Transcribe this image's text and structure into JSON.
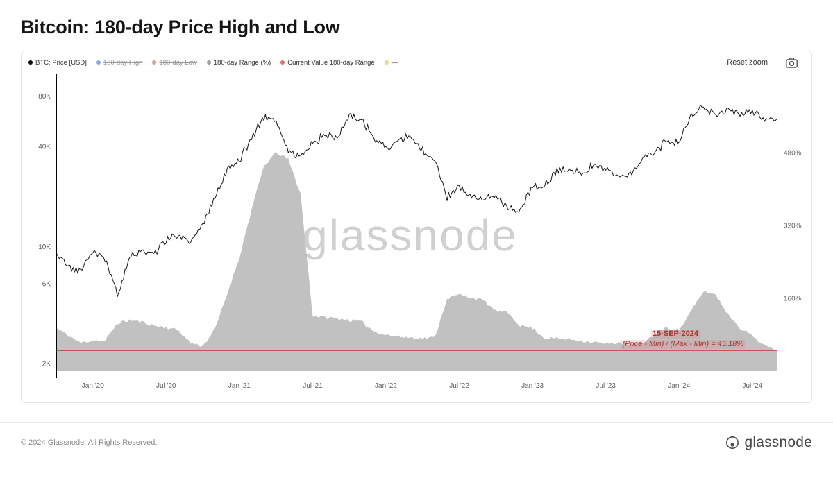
{
  "page": {
    "title": "Bitcoin: 180-day Price High and Low",
    "watermark": "glassnode",
    "footer_copyright": "© 2024 Glassnode. All Rights Reserved.",
    "brand": "glassnode"
  },
  "toolbar": {
    "reset_zoom_label": "Reset zoom"
  },
  "legend": [
    {
      "label": "BTC: Price [USD]",
      "color": "#000000",
      "disabled": false
    },
    {
      "label": "180-day High",
      "color": "#4a7bd4",
      "disabled": true
    },
    {
      "label": "180-day Low",
      "color": "#d45a5a",
      "disabled": true
    },
    {
      "label": "180-day Range (%)",
      "color": "#9e9e9e",
      "disabled": false
    },
    {
      "label": "Current Value 180-day Range",
      "color": "#e07070",
      "disabled": false
    },
    {
      "label": "—",
      "color": "#e0c040",
      "disabled": true
    }
  ],
  "annotation": {
    "date": "15-SEP-2024",
    "formula": "(Price - Min) / (Max - Min) = 45.18%",
    "value_pct": 45.18
  },
  "chart_data": {
    "type": "line",
    "title": "Bitcoin: 180-day Price High and Low",
    "x_start": "2019-10",
    "x_end": "2024-09",
    "x_tick_labels": [
      "Jan '20",
      "Jul '20",
      "Jan '21",
      "Jul '21",
      "Jan '22",
      "Jul '22",
      "Jan '23",
      "Jul '23",
      "Jan '24",
      "Jul '24"
    ],
    "x_tick_month_index": [
      3,
      9,
      15,
      21,
      27,
      33,
      39,
      45,
      51,
      57
    ],
    "price_axis": {
      "scale": "log",
      "side": "left",
      "min": 1800,
      "max": 100000,
      "ticks": [
        2000,
        6000,
        10000,
        40000,
        80000
      ],
      "tick_labels": [
        "2K",
        "6K",
        "10K",
        "40K",
        "80K"
      ]
    },
    "range_axis": {
      "scale": "linear",
      "side": "right",
      "min": 0,
      "max": 640,
      "ticks": [
        160,
        320,
        480
      ],
      "tick_labels": [
        "160%",
        "320%",
        "480%"
      ]
    },
    "series": [
      {
        "name": "BTC: Price [USD]",
        "type": "line",
        "axis": "left",
        "color": "#141414",
        "monthly_values": [
          9200,
          7550,
          7200,
          9350,
          8600,
          5100,
          8650,
          9450,
          9150,
          11100,
          11650,
          10800,
          13800,
          19700,
          28900,
          33100,
          45200,
          58900,
          57700,
          37300,
          35000,
          41600,
          47100,
          43800,
          61300,
          57000,
          46200,
          38500,
          43200,
          45500,
          37700,
          31800,
          19900,
          23300,
          20050,
          19400,
          20500,
          16900,
          16550,
          23100,
          23500,
          28500,
          29200,
          27200,
          30500,
          29200,
          26000,
          26900,
          34700,
          37700,
          42300,
          42600,
          61200,
          71300,
          60600,
          67500,
          62700,
          64600,
          59000,
          58200
        ]
      },
      {
        "name": "180-day Range (%)",
        "type": "area",
        "axis": "right",
        "color": "#c1c1c1",
        "monthly_values": [
          95,
          78,
          62,
          68,
          66,
          105,
          112,
          108,
          100,
          96,
          90,
          62,
          55,
          92,
          170,
          250,
          355,
          450,
          480,
          465,
          390,
          122,
          118,
          116,
          112,
          108,
          88,
          80,
          76,
          74,
          72,
          74,
          160,
          168,
          162,
          155,
          132,
          128,
          100,
          95,
          72,
          72,
          70,
          67,
          64,
          60,
          63,
          58,
          62,
          80,
          95,
          90,
          132,
          175,
          168,
          125,
          95,
          78,
          56,
          45
        ]
      },
      {
        "name": "Current Value 180-day Range",
        "type": "hline",
        "axis": "right",
        "color": "#c24444",
        "value": 45.18
      }
    ]
  }
}
